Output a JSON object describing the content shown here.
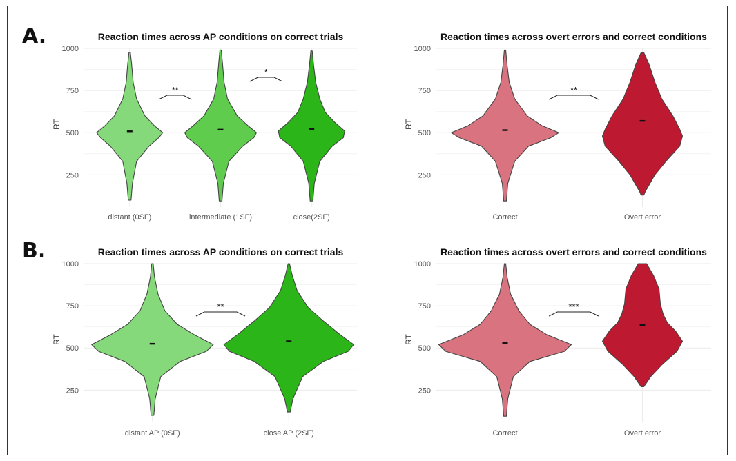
{
  "panels": {
    "A": {
      "letter": "A."
    },
    "B": {
      "letter": "B."
    }
  },
  "chart_data": [
    {
      "type": "violin",
      "panel": "A",
      "title": "Reaction times across AP conditions on correct trials",
      "ylabel": "RT",
      "ylim": [
        100,
        1000
      ],
      "yticks": [
        250,
        500,
        750,
        1000
      ],
      "categories": [
        "distant (0SF)",
        "intermediate (1SF)",
        "close(2SF)"
      ],
      "colors": [
        "#86d97a",
        "#5fcc4e",
        "#2bb519"
      ],
      "medians": [
        508,
        518,
        522
      ],
      "ranges": [
        [
          100,
          975
        ],
        [
          95,
          990
        ],
        [
          95,
          985
        ]
      ],
      "significance": [
        {
          "between": [
            0,
            1
          ],
          "label": "**"
        },
        {
          "between": [
            1,
            2
          ],
          "label": "*"
        }
      ]
    },
    {
      "type": "violin",
      "panel": "A",
      "title": "Reaction times across overt errors and correct conditions",
      "ylabel": "RT",
      "ylim": [
        100,
        1000
      ],
      "yticks": [
        250,
        500,
        750,
        1000
      ],
      "categories": [
        "Correct",
        "Overt error"
      ],
      "colors": [
        "#d9737f",
        "#bd1a32"
      ],
      "medians": [
        515,
        570
      ],
      "ranges": [
        [
          95,
          990
        ],
        [
          130,
          975
        ]
      ],
      "significance": [
        {
          "between": [
            0,
            1
          ],
          "label": "**"
        }
      ]
    },
    {
      "type": "violin",
      "panel": "B",
      "title": "Reaction times across AP conditions on correct trials",
      "ylabel": "RT",
      "ylim": [
        100,
        1000
      ],
      "yticks": [
        250,
        500,
        750,
        1000
      ],
      "categories": [
        "distant AP (0SF)",
        "close AP (2SF)"
      ],
      "colors": [
        "#86d97a",
        "#2bb519"
      ],
      "medians": [
        525,
        540
      ],
      "ranges": [
        [
          100,
          1000
        ],
        [
          120,
          1000
        ]
      ],
      "significance": [
        {
          "between": [
            0,
            1
          ],
          "label": "**"
        }
      ]
    },
    {
      "type": "violin",
      "panel": "B",
      "title": "Reaction times across overt errors and correct conditions",
      "ylabel": "RT",
      "ylim": [
        100,
        1000
      ],
      "yticks": [
        250,
        500,
        750,
        1000
      ],
      "categories": [
        "Correct",
        "Overt error"
      ],
      "colors": [
        "#d9737f",
        "#bd1a32"
      ],
      "medians": [
        530,
        635
      ],
      "ranges": [
        [
          95,
          1000
        ],
        [
          270,
          1000
        ]
      ],
      "significance": [
        {
          "between": [
            0,
            1
          ],
          "label": "***"
        }
      ]
    }
  ]
}
